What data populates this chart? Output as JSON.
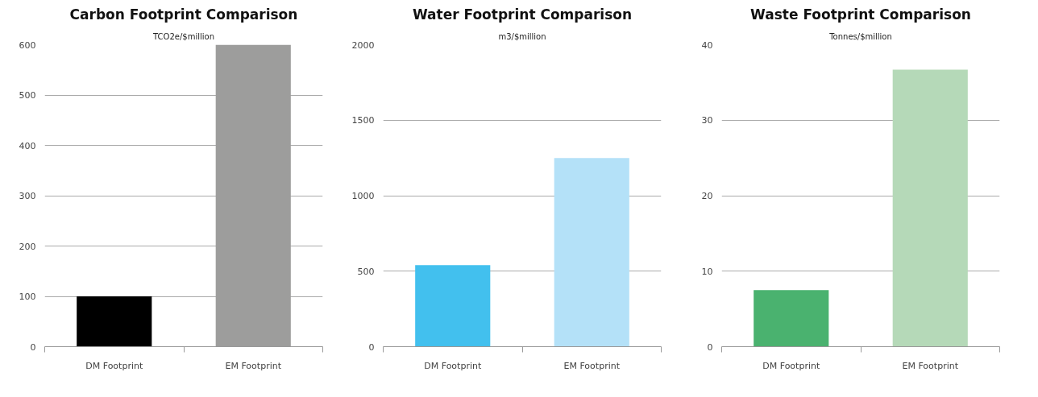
{
  "chart_data": [
    {
      "type": "bar",
      "title": "Carbon Footprint Comparison",
      "subtitle": "TCO2e/$million",
      "categories": [
        "DM Footprint",
        "EM Footprint"
      ],
      "values": [
        100,
        600
      ],
      "colors": [
        "#000000",
        "#9d9d9c"
      ],
      "ylim": [
        0,
        600
      ],
      "yticks": [
        0,
        100,
        200,
        300,
        400,
        500,
        600
      ],
      "grid": "y"
    },
    {
      "type": "bar",
      "title": "Water Footprint Comparison",
      "subtitle": "m3/$million",
      "categories": [
        "DM Footprint",
        "EM Footprint"
      ],
      "values": [
        540,
        1250
      ],
      "colors": [
        "#42c0ee",
        "#b4e1f8"
      ],
      "ylim": [
        0,
        2000
      ],
      "yticks": [
        0,
        500,
        1000,
        1500,
        2000
      ],
      "grid": "y"
    },
    {
      "type": "bar",
      "title": "Waste Footprint Comparison",
      "subtitle": "Tonnes/$million",
      "categories": [
        "DM Footprint",
        "EM Footprint"
      ],
      "values": [
        7.5,
        36.7
      ],
      "colors": [
        "#4ab26f",
        "#b5d9b8"
      ],
      "ylim": [
        0,
        40
      ],
      "yticks": [
        0,
        10,
        20,
        30,
        40
      ],
      "grid": "y"
    }
  ]
}
